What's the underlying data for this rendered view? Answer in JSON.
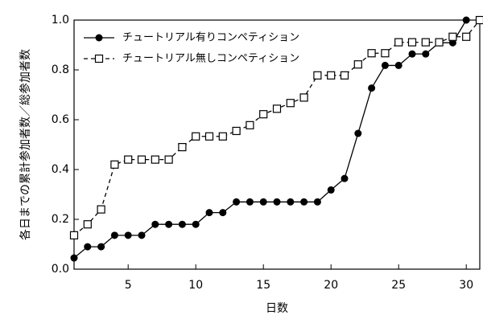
{
  "chart_data": {
    "type": "line",
    "xlabel": "日数",
    "ylabel": "各日までの累計参加者数／総参加者数",
    "x": [
      1,
      2,
      3,
      4,
      5,
      6,
      7,
      8,
      9,
      10,
      11,
      12,
      13,
      14,
      15,
      16,
      17,
      18,
      19,
      20,
      21,
      22,
      23,
      24,
      25,
      26,
      27,
      28,
      29,
      30,
      31
    ],
    "series": [
      {
        "name": "チュートリアル有りコンペティション",
        "color": "#000000",
        "marker": "circle",
        "line_style": "solid",
        "values": [
          0.045,
          0.09,
          0.09,
          0.136,
          0.136,
          0.136,
          0.18,
          0.18,
          0.18,
          0.18,
          0.227,
          0.227,
          0.27,
          0.27,
          0.27,
          0.27,
          0.27,
          0.27,
          0.27,
          0.318,
          0.364,
          0.545,
          0.727,
          0.818,
          0.818,
          0.864,
          0.864,
          0.909,
          0.909,
          1.0,
          null
        ]
      },
      {
        "name": "チュートリアル無しコンペティション",
        "color": "#000000",
        "marker": "square",
        "line_style": "dashed",
        "values": [
          0.136,
          0.18,
          0.24,
          0.42,
          0.44,
          0.44,
          0.44,
          0.44,
          0.49,
          0.533,
          0.533,
          0.533,
          0.555,
          0.578,
          0.622,
          0.644,
          0.667,
          0.689,
          0.778,
          0.778,
          0.778,
          0.822,
          0.867,
          0.867,
          0.911,
          0.911,
          0.911,
          0.911,
          0.933,
          0.933,
          1.0
        ]
      }
    ],
    "xlim": [
      1,
      31
    ],
    "ylim": [
      0,
      1
    ],
    "xticks": [
      5,
      10,
      15,
      20,
      25,
      30
    ],
    "yticks": [
      {
        "value": 0,
        "label": "0.0"
      },
      0.2,
      0.4,
      0.6,
      0.8,
      {
        "value": 1,
        "label": "1.0"
      }
    ],
    "grid": false,
    "legend": "upper-left"
  }
}
